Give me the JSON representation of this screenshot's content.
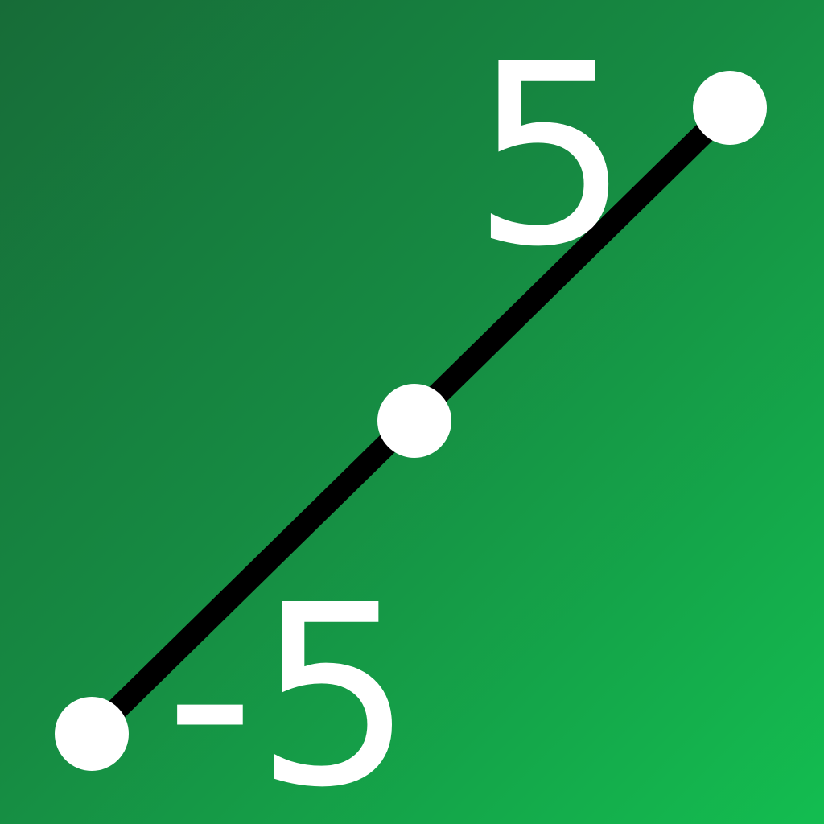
{
  "icon": {
    "label_max": "5",
    "label_min": "-5"
  },
  "colors": {
    "gradient_start": "#176c38",
    "gradient_mid": "#168a42",
    "gradient_end": "#13bd50",
    "line": "#000000",
    "point": "#ffffff",
    "text": "#ffffff"
  }
}
